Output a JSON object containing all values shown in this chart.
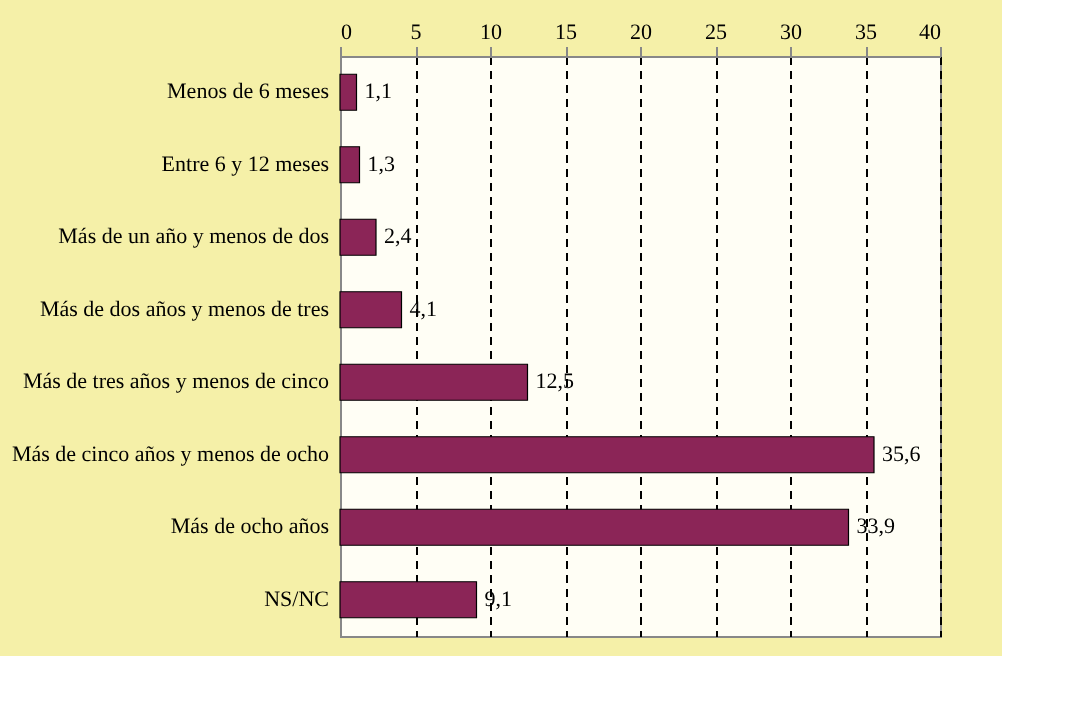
{
  "chart_data": {
    "type": "bar",
    "orientation": "horizontal",
    "categories": [
      "Menos de 6 meses",
      "Entre 6 y 12 meses",
      "Más de un año y menos de dos",
      "Más de dos años y menos de tres",
      "Más de tres años y menos de cinco",
      "Más de cinco años y menos de ocho",
      "Más de ocho años",
      "NS/NC"
    ],
    "values": [
      1.1,
      1.3,
      2.4,
      4.1,
      12.5,
      35.6,
      33.9,
      9.1
    ],
    "value_labels": [
      "1,1",
      "1,3",
      "2,4",
      "4,1",
      "12,5",
      "35,6",
      "33,9",
      "9,1"
    ],
    "color": "#8b2557",
    "xlim": [
      0,
      40
    ],
    "xticks": [
      0,
      5,
      10,
      15,
      20,
      25,
      30,
      35,
      40
    ],
    "grid": "x"
  }
}
